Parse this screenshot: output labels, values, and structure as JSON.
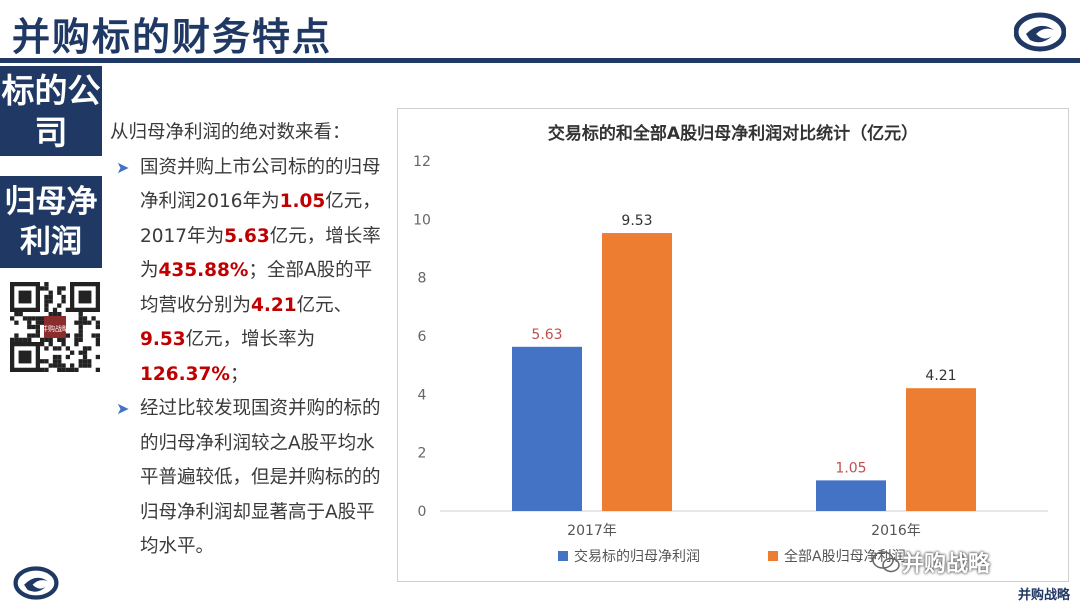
{
  "page": {
    "title": "并购标的财务特点"
  },
  "side": {
    "block1": "标的公司",
    "block2": "归母净利润",
    "qr_text": "并购战略"
  },
  "text": {
    "lead": "从归母净利润的绝对数来看：",
    "b1_p1": "国资并购上市公司标的的归母净利润2016年为",
    "b1_v1": "1.05",
    "b1_p2": "亿元，2017年为",
    "b1_v2": "5.63",
    "b1_p3": "亿元，增长率为",
    "b1_v3": "435.88%",
    "b1_p4": "；全部A股的平均营收分别为",
    "b1_v4": "4.21",
    "b1_p5": "亿元、",
    "b1_v5": "9.53",
    "b1_p6": "亿元，增长率为",
    "b1_v6": "126.37%",
    "b1_p7": "；",
    "b2": "经过比较发现国资并购的标的的归母净利润较之A股平均水平普遍较低，但是并购标的的归母净利润却显著高于A股平均水平。"
  },
  "watermark": {
    "text": "并购战略",
    "brand": "并购战略"
  },
  "chart_data": {
    "type": "bar",
    "title": "交易标的和全部A股归母净利润对比统计（亿元）",
    "categories": [
      "2017年",
      "2016年"
    ],
    "series": [
      {
        "name": "交易标的归母净利润",
        "values": [
          5.63,
          1.05
        ],
        "color": "#4472c4",
        "label_color": "#c0504d"
      },
      {
        "name": "全部A股归母净利润",
        "values": [
          9.53,
          4.21
        ],
        "color": "#ed7d31",
        "label_color": "#333333"
      }
    ],
    "ylim": [
      0,
      12
    ],
    "yticks": [
      0,
      2,
      4,
      6,
      8,
      10,
      12
    ],
    "legend": "bottom",
    "grid": false
  }
}
